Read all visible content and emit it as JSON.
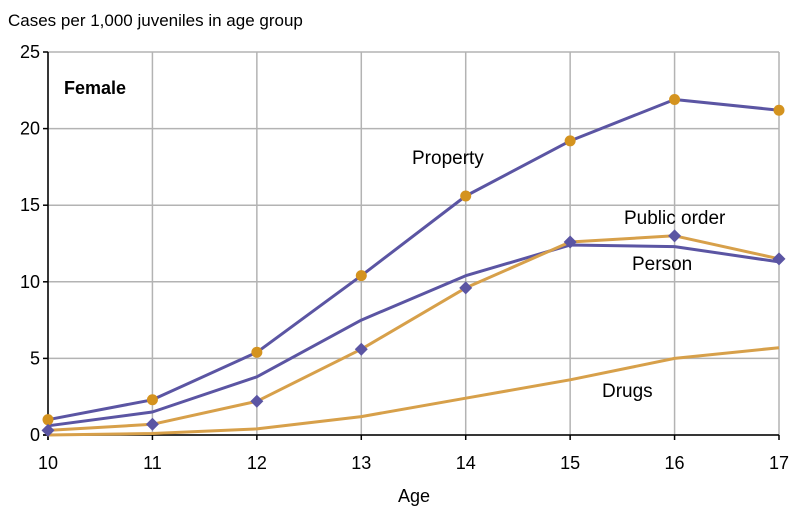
{
  "chart_data": {
    "type": "line",
    "title": "",
    "ylabel": "Cases per 1,000 juveniles in age group",
    "xlabel": "Age",
    "panel_label": "Female",
    "x": [
      10,
      11,
      12,
      13,
      14,
      15,
      16,
      17
    ],
    "xlim": [
      10,
      17
    ],
    "ylim": [
      0,
      25
    ],
    "xticks": [
      "10",
      "11",
      "12",
      "13",
      "14",
      "15",
      "16",
      "17"
    ],
    "yticks": [
      "0",
      "5",
      "10",
      "15",
      "20",
      "25"
    ],
    "grid": true,
    "colors": {
      "gold": "#d7a04a",
      "purple": "#5b55a3",
      "grid": "#b3b3b3"
    },
    "series": [
      {
        "label": "Property",
        "color": "#5b55a3",
        "marker": "circle",
        "marker_color": "#d4931f",
        "values": [
          1.0,
          2.3,
          5.4,
          10.4,
          15.6,
          19.2,
          21.9,
          21.2
        ]
      },
      {
        "label": "Person",
        "color": "#5b55a3",
        "marker": "none",
        "values": [
          0.6,
          1.5,
          3.8,
          7.5,
          10.4,
          12.4,
          12.3,
          11.3
        ]
      },
      {
        "label": "Public order",
        "color": "#d7a04a",
        "marker": "diamond",
        "marker_color": "#5b55a3",
        "values": [
          0.3,
          0.7,
          2.2,
          5.6,
          9.6,
          12.6,
          13.0,
          11.5
        ]
      },
      {
        "label": "Drugs",
        "color": "#d7a04a",
        "marker": "none",
        "values": [
          0.0,
          0.1,
          0.4,
          1.2,
          2.4,
          3.6,
          5.0,
          5.7
        ]
      }
    ]
  }
}
